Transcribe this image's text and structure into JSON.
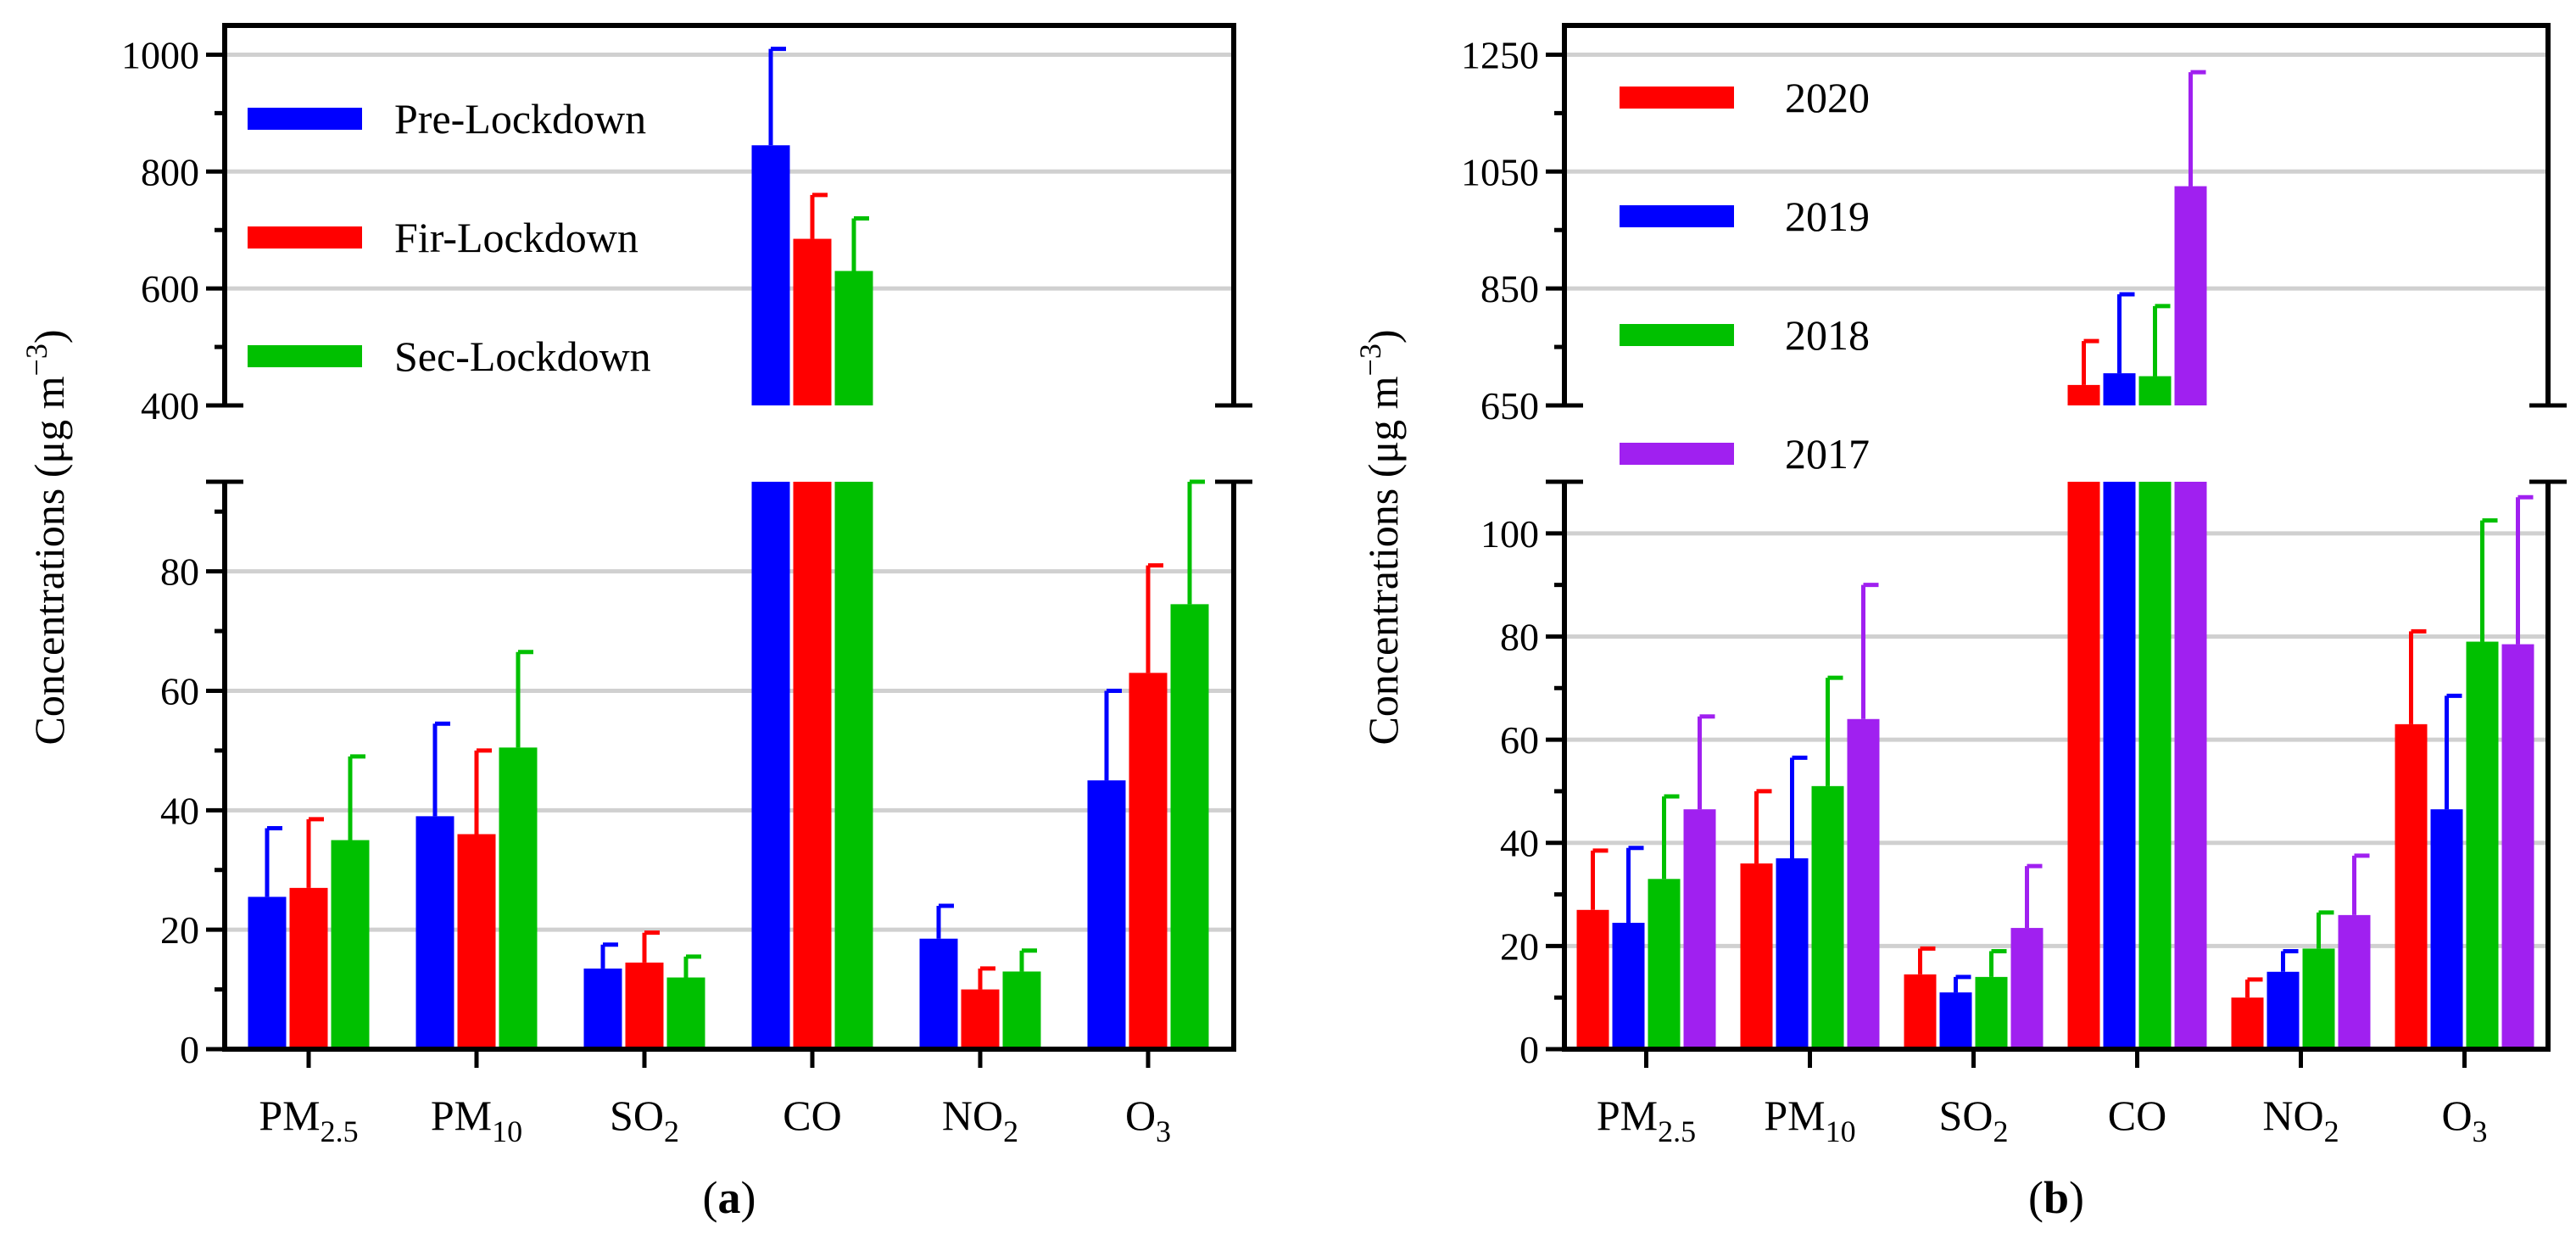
{
  "chart_data": [
    {
      "type": "bar",
      "panel_label": "a",
      "ylabel_main": "Concentrations (μg m",
      "ylabel_sup": "−3",
      "ylabel_close": ")",
      "categories": [
        {
          "main": "PM",
          "sub": "2.5"
        },
        {
          "main": "PM",
          "sub": "10"
        },
        {
          "main": "SO",
          "sub": "2"
        },
        {
          "main": "CO",
          "sub": ""
        },
        {
          "main": "NO",
          "sub": "2"
        },
        {
          "main": "O",
          "sub": "3"
        }
      ],
      "broken_axis": {
        "lower_range": [
          0,
          95
        ],
        "upper_range": [
          400,
          1050
        ],
        "lower_ticks": [
          "0",
          "20",
          "40",
          "60",
          "80"
        ],
        "lower_tick_values": [
          0,
          20,
          40,
          60,
          80
        ],
        "upper_ticks": [
          "400",
          "600",
          "800",
          "1000"
        ],
        "upper_tick_values": [
          400,
          600,
          800,
          1000
        ]
      },
      "series": [
        {
          "name": "Pre-Lockdown",
          "color": "#0000ff",
          "values": [
            25.5,
            39,
            13.5,
            845,
            18.5,
            45
          ],
          "errors": [
            11.5,
            15.5,
            4,
            165,
            5.5,
            15
          ]
        },
        {
          "name": "Fir-Lockdown",
          "color": "#ff0000",
          "values": [
            27,
            36,
            14.5,
            685,
            10,
            63
          ],
          "errors": [
            11.5,
            14,
            5,
            75,
            3.5,
            18
          ]
        },
        {
          "name": "Sec-Lockdown",
          "color": "#00c000",
          "values": [
            35,
            50.5,
            12,
            630,
            13,
            74.5
          ],
          "errors": [
            14,
            16,
            3.5,
            90,
            3.5,
            20.5
          ]
        }
      ]
    },
    {
      "type": "bar",
      "panel_label": "b",
      "ylabel_main": "Concentrations (μg m",
      "ylabel_sup": "−3",
      "ylabel_close": ")",
      "categories": [
        {
          "main": "PM",
          "sub": "2.5"
        },
        {
          "main": "PM",
          "sub": "10"
        },
        {
          "main": "SO",
          "sub": "2"
        },
        {
          "main": "CO",
          "sub": ""
        },
        {
          "main": "NO",
          "sub": "2"
        },
        {
          "main": "O",
          "sub": "3"
        }
      ],
      "broken_axis": {
        "lower_range": [
          0,
          110
        ],
        "upper_range": [
          650,
          1300
        ],
        "lower_ticks": [
          "0",
          "20",
          "40",
          "60",
          "80",
          "100"
        ],
        "lower_tick_values": [
          0,
          20,
          40,
          60,
          80,
          100
        ],
        "upper_ticks": [
          "650",
          "850",
          "1050",
          "1250"
        ],
        "upper_tick_values": [
          650,
          850,
          1050,
          1250
        ]
      },
      "series": [
        {
          "name": "2020",
          "color": "#ff0000",
          "values": [
            27,
            36,
            14.5,
            685,
            10,
            63
          ],
          "errors": [
            11.5,
            14,
            5,
            75,
            3.5,
            18
          ]
        },
        {
          "name": "2019",
          "color": "#0000ff",
          "values": [
            24.5,
            37,
            11,
            705,
            15,
            46.5
          ],
          "errors": [
            14.5,
            19.5,
            3,
            135,
            4,
            22
          ]
        },
        {
          "name": "2018",
          "color": "#00c000",
          "values": [
            33,
            51,
            14,
            700,
            19.5,
            79
          ],
          "errors": [
            16,
            21,
            5,
            120,
            7,
            23.5
          ]
        },
        {
          "name": "2017",
          "color": "#a020f0",
          "values": [
            46.5,
            64,
            23.5,
            1025,
            26,
            78.5
          ],
          "errors": [
            18,
            26,
            12,
            195,
            11.5,
            28.5
          ]
        }
      ]
    }
  ]
}
